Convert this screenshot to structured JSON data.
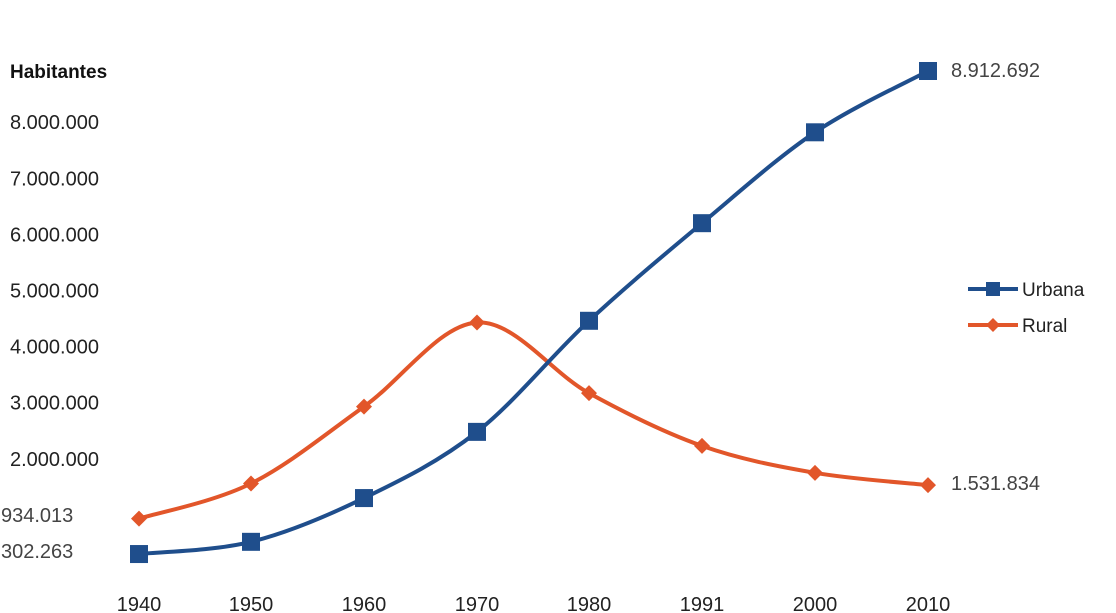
{
  "chart_data": {
    "type": "line",
    "ylabel": "Habitantes",
    "x": [
      "1940",
      "1950",
      "1960",
      "1970",
      "1980",
      "1991",
      "2000",
      "2010"
    ],
    "y_ticks": [
      "2.000.000",
      "3.000.000",
      "4.000.000",
      "5.000.000",
      "6.000.000",
      "7.000.000",
      "8.000.000"
    ],
    "ylim": [
      0,
      9500000
    ],
    "grid": false,
    "legend_position": "right",
    "series": [
      {
        "name": "Urbana",
        "color": "#1f4e8c",
        "marker": "square",
        "values": [
          302263,
          520000,
          1300000,
          2480000,
          4460000,
          6200000,
          7820000,
          8912692
        ]
      },
      {
        "name": "Rural",
        "color": "#e2562a",
        "marker": "diamond",
        "values": [
          934013,
          1560000,
          2930000,
          4430000,
          3170000,
          2230000,
          1750000,
          1531834
        ]
      }
    ],
    "annotations": {
      "urbana_start": "302.263",
      "rural_start": "934.013",
      "urbana_end": "8.912.692",
      "rural_end": "1.531.834"
    }
  }
}
